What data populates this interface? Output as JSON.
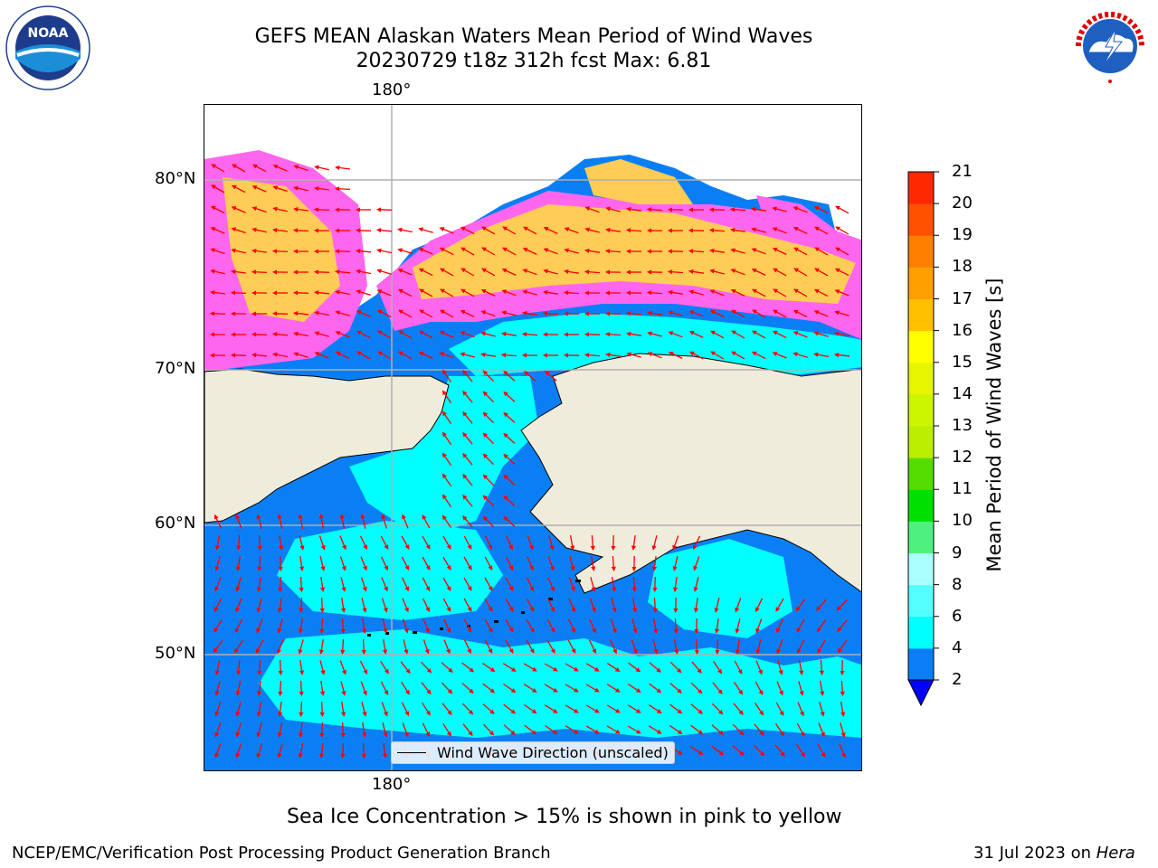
{
  "title": {
    "line1": "GEFS MEAN Alaskan Waters Mean Period of Wind Waves",
    "line2": "20230729 t18z 312h fcst   Max: 6.81"
  },
  "logos": {
    "left_icon": "noaa-logo",
    "left_text": "NOAA",
    "right_icon": "national-weather-service-logo",
    "right_text": "NATIONAL WEATHER SERVICE"
  },
  "map": {
    "lon_label_top": "180°",
    "lon_label_bottom": "180°",
    "lat_labels": [
      "80°N",
      "70°N",
      "60°N",
      "50°N"
    ],
    "legend_label": "Wind Wave Direction (unscaled)",
    "colors": {
      "land": "#efecdc",
      "ocean_2_4": "#0a7ff5",
      "ocean_4_6": "#00ffff",
      "ice_pink": "#ff66ee",
      "ice_yellow": "#ffcc55",
      "arrow": "#ff0000"
    }
  },
  "colorbar": {
    "label": "Mean Period of Wind Waves [s]",
    "ticks": [
      "2",
      "4",
      "6",
      "8",
      "9",
      "10",
      "11",
      "12",
      "13",
      "14",
      "15",
      "16",
      "17",
      "18",
      "19",
      "20",
      "21"
    ],
    "colors": [
      "#0a7ff5",
      "#00ffff",
      "#55ffff",
      "#aaffff",
      "#4ff07f",
      "#00e000",
      "#55dd00",
      "#bbee00",
      "#ccf500",
      "#e6f500",
      "#ffff00",
      "#ffc000",
      "#ffa000",
      "#ff8000",
      "#ff5000",
      "#ff2800",
      "#ff0000"
    ],
    "extend_color": "#0000ff"
  },
  "note": "Sea Ice Concentration > 15% is shown in pink to yellow",
  "footer": {
    "left": "NCEP/EMC/Verification Post Processing Product Generation Branch",
    "right_date": "31 Jul 2023 on ",
    "right_machine": "Hera"
  }
}
